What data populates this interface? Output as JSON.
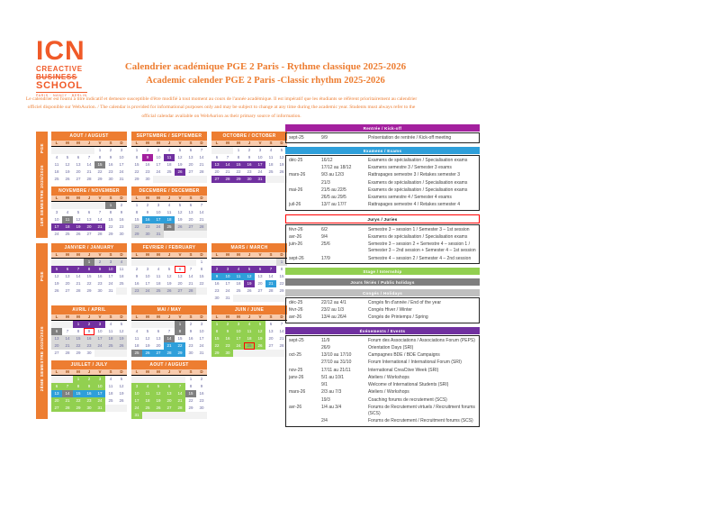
{
  "logo": {
    "acronym": "ICN",
    "line1": "CREACTIVE",
    "line2": "BUSINESS",
    "line3": "SCHOOL",
    "tagline": "PARIS · NANCY · BERLIN"
  },
  "header": {
    "title_fr": "Calendrier académique PGE 2 Paris - Rythme classique 2025-2026",
    "title_en": "Academic calender PGE 2 Paris -Classic rhythm 2025-2026"
  },
  "disclaimer": "Le calendrier est fourni à titre indicatif et demeure susceptible d'être modifié à tout moment au cours de l'année académique. Il est impératif que les étudiants se réfèrent prioritairement au calendrier officiel disponible sur WebAurion. / The calendar is provided for informational purposes only and may be subject to change at any time during the academic year. Students must always refer to the official calendar available on WebAurion as their primary source of information.",
  "colors": {
    "orange": "#ED7D31",
    "salmon": "#F8CBAD",
    "mg": "#A3209E",
    "pu": "#7030A0",
    "bl": "#2E9FDA",
    "gn": "#92D050",
    "dg": "#808080",
    "lg": "#D9D9D9",
    "red": "#FF0000",
    "empty": "#F2F2F2"
  },
  "day_headers": [
    "L",
    "M",
    "M",
    "J",
    "V",
    "S",
    "D"
  ],
  "calendar": {
    "blocks": [
      {
        "sidebar": {
          "top": "PGE",
          "bottom": "1ER SEMESTRE 2025/2026"
        },
        "rows": [
          [
            {
              "title": "AOUT / AUGUST",
              "offset": 4,
              "days": 31,
              "marks": {
                "15": "dg"
              }
            },
            {
              "title": "SEPTEMBRE / SEPTEMBER",
              "offset": 0,
              "days": 30,
              "marks": {
                "9": "mg",
                "11": "pu",
                "26": "pu"
              }
            },
            {
              "title": "OCTOBRE / OCTOBER",
              "offset": 2,
              "days": 31,
              "marks": {
                "13": "pu",
                "14": "pu",
                "15": "pu",
                "16": "pu",
                "17": "pu",
                "27": "pu",
                "28": "pu",
                "29": "pu",
                "30": "pu",
                "31": "pu"
              }
            }
          ],
          [
            {
              "title": "NOVEMBRE / NOVEMBER",
              "offset": 5,
              "days": 30,
              "marks": {
                "1": "dg",
                "11": "dg",
                "17": "pu",
                "18": "pu",
                "19": "pu",
                "20": "pu",
                "21": "pu"
              }
            },
            {
              "title": "DECEMBRE / DECEMBER",
              "offset": 0,
              "days": 31,
              "marks": {
                "16": "bl",
                "17": "bl",
                "18": "bl",
                "22": "lg",
                "23": "lg",
                "24": "lg",
                "25": "dg",
                "26": "lg",
                "27": "lg",
                "28": "lg",
                "29": "lg",
                "30": "lg",
                "31": "lg"
              }
            }
          ]
        ]
      },
      {
        "sidebar": {
          "top": "PGE",
          "bottom": "2ÈME SEMESTRE 2025/2026"
        },
        "rows": [
          [
            {
              "title": "JANVIER / JANUARY",
              "offset": 3,
              "days": 31,
              "marks": {
                "1": "dg",
                "2": "lg",
                "3": "lg",
                "4": "lg",
                "5": "pu",
                "6": "pu",
                "7": "pu",
                "8": "pu",
                "9": "pu",
                "10": "pu"
              }
            },
            {
              "title": "FEVRIER / FEBRUARY",
              "offset": 6,
              "days": 28,
              "marks": {
                "6": "rd",
                "23": "lg",
                "24": "lg",
                "25": "lg",
                "26": "lg",
                "27": "lg",
                "28": "lg"
              }
            },
            {
              "title": "MARS / MARCH",
              "offset": 6,
              "days": 31,
              "marks": {
                "1": "lg",
                "2": "pu",
                "3": "pu",
                "4": "pu",
                "5": "pu",
                "6": "pu",
                "7": "pu",
                "9": "bl",
                "10": "bl",
                "11": "bl",
                "12": "bl",
                "19": "pu",
                "21": "bl"
              }
            }
          ],
          [
            {
              "title": "AVRIL / APRIL",
              "offset": 2,
              "days": 30,
              "marks": {
                "1": "pu",
                "2": "pu",
                "3": "pu",
                "6": "dg",
                "9": "rd",
                "13": "lg",
                "14": "lg",
                "15": "lg",
                "16": "lg",
                "17": "lg",
                "18": "lg",
                "19": "lg",
                "20": "lg",
                "21": "lg",
                "22": "lg",
                "23": "lg",
                "24": "lg",
                "25": "lg",
                "26": "lg"
              }
            },
            {
              "title": "MAI / MAY",
              "offset": 4,
              "days": 31,
              "marks": {
                "1": "dg",
                "8": "dg",
                "14": "dg",
                "21": "bl",
                "22": "bl",
                "25": "dg",
                "26": "bl",
                "27": "bl",
                "28": "bl",
                "29": "bl"
              }
            },
            {
              "title": "JUIN / JUNE",
              "offset": 0,
              "days": 30,
              "marks": {
                "1": "gn",
                "2": "gn",
                "3": "gn",
                "4": "gn",
                "5": "gn",
                "8": "gn",
                "9": "gn",
                "10": "gn",
                "11": "gn",
                "12": "gn",
                "15": "gn",
                "16": "gn",
                "17": "gn",
                "18": "gn",
                "19": "gn",
                "22": "gn",
                "23": "gn",
                "24": "gn",
                "25": "rdg",
                "26": "gn",
                "29": "gn",
                "30": "gn"
              }
            }
          ],
          [
            {
              "title": "JUILLET / JULY",
              "offset": 2,
              "days": 31,
              "marks": {
                "1": "gn",
                "2": "gn",
                "3": "gn",
                "6": "gn",
                "7": "gn",
                "8": "gn",
                "9": "gn",
                "10": "gn",
                "13": "bl",
                "14": "dg",
                "15": "bl",
                "16": "bl",
                "17": "bl",
                "20": "gn",
                "21": "gn",
                "22": "gn",
                "23": "gn",
                "24": "gn",
                "27": "gn",
                "28": "gn",
                "29": "gn",
                "30": "gn",
                "31": "gn"
              }
            },
            {
              "title": "AOUT / AUGUST",
              "offset": 5,
              "days": 31,
              "marks": {
                "3": "gn",
                "4": "gn",
                "5": "gn",
                "6": "gn",
                "7": "gn",
                "10": "gn",
                "11": "gn",
                "12": "gn",
                "13": "gn",
                "14": "gn",
                "15": "dg",
                "17": "gn",
                "18": "gn",
                "19": "gn",
                "20": "gn",
                "21": "gn",
                "24": "gn",
                "25": "gn",
                "26": "gn",
                "27": "gn",
                "28": "gn",
                "31": "gn"
              }
            }
          ]
        ]
      }
    ]
  },
  "legend_sections": [
    {
      "color": "#A3209E",
      "text_color": "#FFFFFF",
      "border": "",
      "label": "Rentrée / Kick-off",
      "rows": [
        {
          "month": "sept-25",
          "dates": "9/9",
          "desc": "Présentation de rentrée / Kick-off meeting"
        }
      ]
    },
    {
      "color": "#2E9FDA",
      "text_color": "#FFFFFF",
      "border": "",
      "label": "Examens / Exams",
      "rows": [
        {
          "month": "déc-25",
          "dates": "16/12",
          "desc": "Examens de spécialisation / Specialisation exams"
        },
        {
          "month": "",
          "dates": "17/12 au 18/12",
          "desc": "Examens semestre 3 / Semester 3 exams"
        },
        {
          "month": "mars-26",
          "dates": "9/3 au 12/3",
          "desc": "Rattrapages semestre 3 / Retakes semester 3"
        },
        {
          "month": "",
          "dates": "21/3",
          "desc": "Examens de spécialisation / Specialisation exams"
        },
        {
          "month": "mai-26",
          "dates": "21/5 au 22/5",
          "desc": "Examens de spécialisation / Specialisation exams"
        },
        {
          "month": "",
          "dates": "26/5 au 29/5",
          "desc": "Examens semestre 4 / Semester 4 exams"
        },
        {
          "month": "juil-26",
          "dates": "13/7 au 17/7",
          "desc": "Rattrapages semestre 4 / Retakes semester 4"
        }
      ]
    },
    {
      "color": "#FFFFFF",
      "text_color": "#000000",
      "border": "#FF0000",
      "label": "Jurys / Juries",
      "rows": [
        {
          "month": "févr-26",
          "dates": "6/2",
          "desc": "Semestre 3 – session 1 / Semester 3 – 1st session"
        },
        {
          "month": "avr-26",
          "dates": "9/4",
          "desc": "Examens de spécialisation / Specialisation exams"
        },
        {
          "month": "juin-26",
          "dates": "25/6",
          "desc": "Semestre 3 – session 2 + Semestre 4 – session 1 / Semester 3 – 2nd session + Semester 4 – 1st session"
        },
        {
          "month": "sept-26",
          "dates": "17/9",
          "desc": "Semestre 4 – session 2 / Semester 4 – 2nd session"
        }
      ]
    },
    {
      "color": "#92D050",
      "text_color": "#FFFFFF",
      "border": "",
      "label": "Stage / Internship",
      "rows": []
    },
    {
      "color": "#7F7F7F",
      "text_color": "#FFFFFF",
      "border": "",
      "label": "Jours fériés / Public holidays",
      "rows": []
    },
    {
      "color": "#BFBFBF",
      "text_color": "#FFFFFF",
      "border": "",
      "label": "Congés / Holidays",
      "rows": [
        {
          "month": "déc-25",
          "dates": "22/12 au 4/1",
          "desc": "Congés fin d'année / End of the year"
        },
        {
          "month": "févr-26",
          "dates": "23/2 au 1/3",
          "desc": "Congés Hiver / Winter"
        },
        {
          "month": "avr-26",
          "dates": "13/4 au 26/4",
          "desc": "Congés de Printemps / Spring"
        }
      ]
    },
    {
      "color": "#7030A0",
      "text_color": "#FFFFFF",
      "border": "",
      "label": "Événements / Events",
      "rows": [
        {
          "month": "sept-25",
          "dates": "11/9",
          "desc": "Forum des Associations / Associations Forum (PEPS)"
        },
        {
          "month": "",
          "dates": "26/9",
          "desc": "Orientation Days (SRI)"
        },
        {
          "month": "oct-25",
          "dates": "13/10 au 17/10",
          "desc": "Campagnes BDE / BDE Campaigns"
        },
        {
          "month": "",
          "dates": "27/10 au 31/10",
          "desc": "Forum International / International Forum (SRI)"
        },
        {
          "month": "nov-25",
          "dates": "17/11 au 21/11",
          "desc": "International CreaCtive Week (SRI)"
        },
        {
          "month": "janv-26",
          "dates": "5/1 au 10/1",
          "desc": "Ateliers / Workshops"
        },
        {
          "month": "",
          "dates": "9/1",
          "desc": "Welcome of International Students (SRI)"
        },
        {
          "month": "mars-26",
          "dates": "2/3 au 7/3",
          "desc": "Ateliers / Workshops"
        },
        {
          "month": "",
          "dates": "19/3",
          "desc": "Coaching forums de recrutement (SCS)"
        },
        {
          "month": "avr-26",
          "dates": "1/4 au 3/4",
          "desc": "Forums de Recrutement virtuels / Recruitment forums (SCS)"
        },
        {
          "month": "",
          "dates": "2/4",
          "desc": "Forums de Recrutement / Recruitment forums (SCS)"
        }
      ]
    }
  ]
}
